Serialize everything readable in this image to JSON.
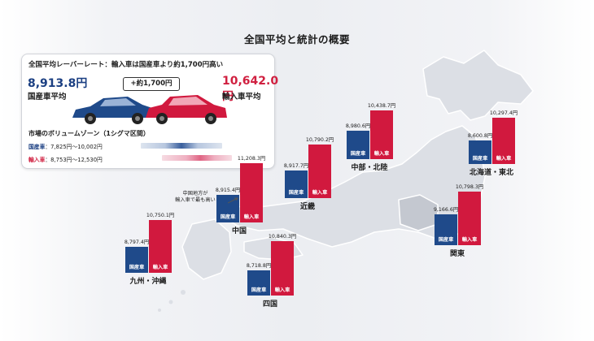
{
  "page_title": "全国平均と統計の概要",
  "summary": {
    "headline": "全国平均レーバーレート：輸入車は国産車より約1,700円高い",
    "domestic_price": "8,913.8円",
    "domestic_label": "国産車平均",
    "import_price": "10,642.0円",
    "import_label": "輸入車平均",
    "difference_label": "+約1,700円",
    "volume_zone_title": "市場のボリュームゾーン（1シグマ区間）",
    "domestic_range_label": "国産車",
    "domestic_range": "：7,825円〜10,002円",
    "import_range_label": "輸入車",
    "import_range": "：8,753円〜12,530円"
  },
  "note": {
    "line1": "中国地方が",
    "line2": "輸入車で最も高い"
  },
  "colors": {
    "domestic": "#1f4a8a",
    "import": "#d1193e"
  },
  "chart_data": {
    "type": "bar",
    "title": "全国平均と統計の概要",
    "series": [
      {
        "name": "国産車",
        "key": "domestic"
      },
      {
        "name": "輸入車",
        "key": "import"
      }
    ],
    "regions": [
      {
        "name": "北海道・東北",
        "domestic": 8600.8,
        "import": 10297.4,
        "domestic_label": "8,600.8円",
        "import_label": "10,297.4円"
      },
      {
        "name": "中部・北陸",
        "domestic": 8980.6,
        "import": 10438.7,
        "domestic_label": "8,980.6円",
        "import_label": "10,438.7円"
      },
      {
        "name": "近畿",
        "domestic": 8917.7,
        "import": 10790.2,
        "domestic_label": "8,917.7円",
        "import_label": "10,790.2円"
      },
      {
        "name": "中国",
        "domestic": 8915.4,
        "import": 11208.3,
        "domestic_label": "8,915.4円",
        "import_label": "11,208.3円"
      },
      {
        "name": "関東",
        "domestic": 9166.6,
        "import": 10798.3,
        "domestic_label": "9,166.6円",
        "import_label": "10,798.3円"
      },
      {
        "name": "九州・沖縄",
        "domestic": 8797.4,
        "import": 10750.1,
        "domestic_label": "8,797.4円",
        "import_label": "10,750.1円"
      },
      {
        "name": "四国",
        "domestic": 8718.8,
        "import": 10840.3,
        "domestic_label": "8,718.8円",
        "import_label": "10,840.3円"
      }
    ]
  }
}
